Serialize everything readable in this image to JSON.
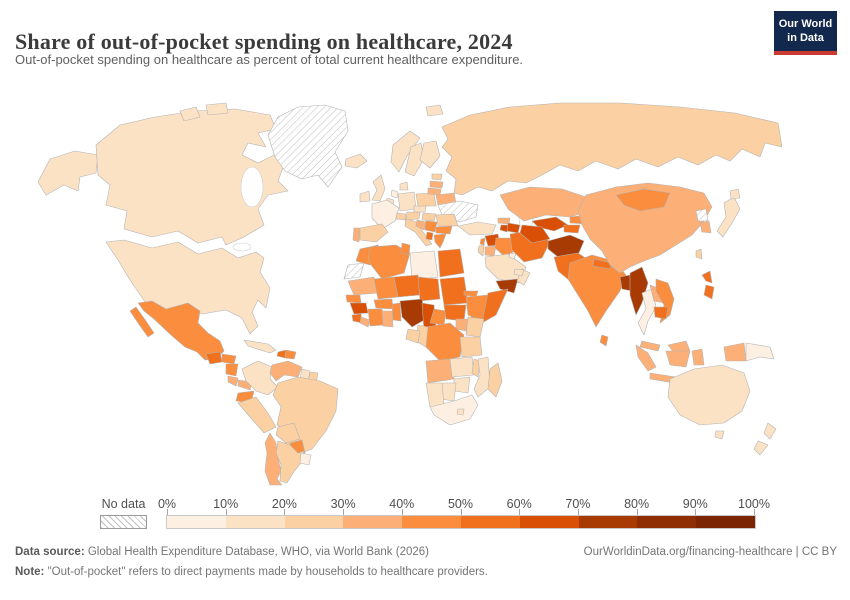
{
  "header": {
    "title": "Share of out-of-pocket spending on healthcare, 2024",
    "subtitle": "Out-of-pocket spending on healthcare as percent of total current healthcare expenditure.",
    "logo": {
      "line1": "Our World",
      "line2": "in Data",
      "bg_color": "#12294d",
      "accent_color": "#cc3b31"
    }
  },
  "legend": {
    "no_data_label": "No data",
    "tick_labels": [
      "0%",
      "10%",
      "20%",
      "30%",
      "40%",
      "50%",
      "60%",
      "70%",
      "80%",
      "90%",
      "100%"
    ]
  },
  "footer": {
    "source_label": "Data source:",
    "source_text": " Global Health Expenditure Database, WHO, via World Bank (2026)",
    "link_text": "OurWorldinData.org/financing-healthcare | CC BY",
    "note_label": "Note:",
    "note_text": " \"Out-of-pocket\" refers to direct payments made by households to healthcare providers."
  },
  "chart_data": {
    "type": "heatmap",
    "subtype": "choropleth world map",
    "title": "Share of out-of-pocket spending on healthcare, 2024",
    "unit": "percent of total current healthcare expenditure",
    "legend_position": "bottom",
    "no_data_style": "gray diagonal hatch",
    "legend_bins": [
      {
        "range": "0-10%",
        "color": "#fdf0e2"
      },
      {
        "range": "10-20%",
        "color": "#fce2c5"
      },
      {
        "range": "20-30%",
        "color": "#fbd0a2"
      },
      {
        "range": "30-40%",
        "color": "#fcb077"
      },
      {
        "range": "40-50%",
        "color": "#fa8d3e"
      },
      {
        "range": "50-60%",
        "color": "#f1701e"
      },
      {
        "range": "60-70%",
        "color": "#d94f05"
      },
      {
        "range": "70-80%",
        "color": "#a83b03"
      },
      {
        "range": "80-90%",
        "color": "#8f2d04"
      },
      {
        "range": "90-100%",
        "color": "#7b2504"
      }
    ],
    "countries": {
      "United_States": {
        "range": "10-20%",
        "color": "#fce2c5"
      },
      "Canada": {
        "range": "10-20%",
        "color": "#fce2c5"
      },
      "Greenland": {
        "range": "No data",
        "color": "hatch"
      },
      "Mexico": {
        "range": "40-50%",
        "color": "#fa8d3e"
      },
      "Guatemala": {
        "range": "50-60%",
        "color": "#f1701e"
      },
      "Honduras": {
        "range": "40-50%",
        "color": "#fa8d3e"
      },
      "Nicaragua": {
        "range": "40-50%",
        "color": "#fa8d3e"
      },
      "Costa_Rica": {
        "range": "30-40%",
        "color": "#fcb077"
      },
      "Panama": {
        "range": "30-40%",
        "color": "#fcb077"
      },
      "Cuba": {
        "range": "10-20%",
        "color": "#fce2c5"
      },
      "Haiti": {
        "range": "50-60%",
        "color": "#f1701e"
      },
      "Dominican_Republic": {
        "range": "40-50%",
        "color": "#fa8d3e"
      },
      "Colombia": {
        "range": "10-20%",
        "color": "#fce2c5"
      },
      "Venezuela": {
        "range": "30-40%",
        "color": "#fcb077"
      },
      "Guyana": {
        "range": "10-20%",
        "color": "#fce2c5"
      },
      "Suriname": {
        "range": "20-30%",
        "color": "#fbd0a2"
      },
      "Ecuador": {
        "range": "40-50%",
        "color": "#fa8d3e"
      },
      "Peru": {
        "range": "20-30%",
        "color": "#fbd0a2"
      },
      "Brazil": {
        "range": "20-30%",
        "color": "#fbd0a2"
      },
      "Bolivia": {
        "range": "20-30%",
        "color": "#fbd0a2"
      },
      "Paraguay": {
        "range": "40-50%",
        "color": "#fa8d3e"
      },
      "Chile": {
        "range": "30-40%",
        "color": "#fcb077"
      },
      "Argentina": {
        "range": "20-30%",
        "color": "#fbd0a2"
      },
      "Uruguay": {
        "range": "0-10%",
        "color": "#fdf0e2"
      },
      "Iceland": {
        "range": "10-20%",
        "color": "#fce2c5"
      },
      "Ireland": {
        "range": "10-20%",
        "color": "#fce2c5"
      },
      "United_Kingdom": {
        "range": "10-20%",
        "color": "#fce2c5"
      },
      "Norway": {
        "range": "10-20%",
        "color": "#fce2c5"
      },
      "Sweden": {
        "range": "10-20%",
        "color": "#fce2c5"
      },
      "Finland": {
        "range": "10-20%",
        "color": "#fce2c5"
      },
      "Denmark": {
        "range": "10-20%",
        "color": "#fce2c5"
      },
      "Germany": {
        "range": "10-20%",
        "color": "#fce2c5"
      },
      "Netherlands": {
        "range": "0-10%",
        "color": "#fdf0e2"
      },
      "Belgium": {
        "range": "10-20%",
        "color": "#fce2c5"
      },
      "France": {
        "range": "0-10%",
        "color": "#fdf0e2"
      },
      "Spain": {
        "range": "20-30%",
        "color": "#fbd0a2"
      },
      "Portugal": {
        "range": "30-40%",
        "color": "#fcb077"
      },
      "Italy": {
        "range": "20-30%",
        "color": "#fbd0a2"
      },
      "Switzerland": {
        "range": "20-30%",
        "color": "#fbd0a2"
      },
      "Austria": {
        "range": "20-30%",
        "color": "#fbd0a2"
      },
      "Czechia": {
        "range": "10-20%",
        "color": "#fce2c5"
      },
      "Poland": {
        "range": "20-30%",
        "color": "#fbd0a2"
      },
      "Hungary": {
        "range": "20-30%",
        "color": "#fbd0a2"
      },
      "Romania": {
        "range": "20-30%",
        "color": "#fbd0a2"
      },
      "Bulgaria": {
        "range": "40-50%",
        "color": "#fa8d3e"
      },
      "Greece": {
        "range": "40-50%",
        "color": "#fa8d3e"
      },
      "Serbia": {
        "range": "40-50%",
        "color": "#fa8d3e"
      },
      "Bosnia_and_Herzegovina": {
        "range": "30-40%",
        "color": "#fcb077"
      },
      "Albania": {
        "range": "50-60%",
        "color": "#f1701e"
      },
      "Estonia": {
        "range": "20-30%",
        "color": "#fbd0a2"
      },
      "Latvia": {
        "range": "30-40%",
        "color": "#fcb077"
      },
      "Lithuania": {
        "range": "30-40%",
        "color": "#fcb077"
      },
      "Belarus": {
        "range": "30-40%",
        "color": "#fcb077"
      },
      "Ukraine": {
        "range": "No data",
        "color": "hatch"
      },
      "Russia": {
        "range": "20-30%",
        "color": "#fbd0a2"
      },
      "Turkey": {
        "range": "10-20%",
        "color": "#fce2c5"
      },
      "Georgia": {
        "range": "30-40%",
        "color": "#fcb077"
      },
      "Armenia": {
        "range": "60-70%",
        "color": "#d94f05"
      },
      "Azerbaijan": {
        "range": "60-70%",
        "color": "#d94f05"
      },
      "Syria": {
        "range": "60-70%",
        "color": "#d94f05"
      },
      "Lebanon": {
        "range": "40-50%",
        "color": "#fa8d3e"
      },
      "Israel": {
        "range": "20-30%",
        "color": "#fbd0a2"
      },
      "Jordan": {
        "range": "30-40%",
        "color": "#fcb077"
      },
      "Iraq": {
        "range": "40-50%",
        "color": "#fa8d3e"
      },
      "Iran": {
        "range": "50-60%",
        "color": "#f1701e"
      },
      "Saudi_Arabia": {
        "range": "10-20%",
        "color": "#fce2c5"
      },
      "Yemen": {
        "range": "70-80%",
        "color": "#a83b03"
      },
      "Oman": {
        "range": "10-20%",
        "color": "#fce2c5"
      },
      "United_Arab_Emirates": {
        "range": "10-20%",
        "color": "#fce2c5"
      },
      "Kuwait": {
        "range": "0-10%",
        "color": "#fdf0e2"
      },
      "Kazakhstan": {
        "range": "30-40%",
        "color": "#fcb077"
      },
      "Uzbekistan": {
        "range": "60-70%",
        "color": "#d94f05"
      },
      "Turkmenistan": {
        "range": "60-70%",
        "color": "#d94f05"
      },
      "Kyrgyzstan": {
        "range": "40-50%",
        "color": "#fa8d3e"
      },
      "Tajikistan": {
        "range": "50-60%",
        "color": "#f1701e"
      },
      "Afghanistan": {
        "range": "70-80%",
        "color": "#a83b03"
      },
      "Pakistan": {
        "range": "50-60%",
        "color": "#f1701e"
      },
      "India": {
        "range": "40-50%",
        "color": "#fa8d3e"
      },
      "Nepal": {
        "range": "50-60%",
        "color": "#f1701e"
      },
      "Bangladesh": {
        "range": "70-80%",
        "color": "#a83b03"
      },
      "Sri_Lanka": {
        "range": "40-50%",
        "color": "#fa8d3e"
      },
      "Myanmar": {
        "range": "70-80%",
        "color": "#a83b03"
      },
      "Thailand": {
        "range": "0-10%",
        "color": "#fdf0e2"
      },
      "Laos": {
        "range": "30-40%",
        "color": "#fcb077"
      },
      "Vietnam": {
        "range": "40-50%",
        "color": "#fa8d3e"
      },
      "Cambodia": {
        "range": "50-60%",
        "color": "#f1701e"
      },
      "Malaysia": {
        "range": "30-40%",
        "color": "#fcb077"
      },
      "Indonesia": {
        "range": "30-40%",
        "color": "#fcb077"
      },
      "Philippines": {
        "range": "50-60%",
        "color": "#f1701e"
      },
      "China": {
        "range": "30-40%",
        "color": "#fcb077"
      },
      "Mongolia": {
        "range": "40-50%",
        "color": "#fa8d3e"
      },
      "North_Korea": {
        "range": "No data",
        "color": "hatch"
      },
      "South_Korea": {
        "range": "30-40%",
        "color": "#fcb077"
      },
      "Japan": {
        "range": "10-20%",
        "color": "#fce2c5"
      },
      "Taiwan": {
        "range": "20-30%",
        "color": "#fbd0a2"
      },
      "Papua_New_Guinea": {
        "range": "0-10%",
        "color": "#fdf0e2"
      },
      "Australia": {
        "range": "10-20%",
        "color": "#fce2c5"
      },
      "New_Zealand": {
        "range": "10-20%",
        "color": "#fce2c5"
      },
      "Morocco": {
        "range": "40-50%",
        "color": "#fa8d3e"
      },
      "Western_Sahara": {
        "range": "No data",
        "color": "hatch"
      },
      "Algeria": {
        "range": "40-50%",
        "color": "#fa8d3e"
      },
      "Tunisia": {
        "range": "40-50%",
        "color": "#fa8d3e"
      },
      "Libya": {
        "range": "0-10%",
        "color": "#fdf0e2"
      },
      "Egypt": {
        "range": "50-60%",
        "color": "#f1701e"
      },
      "Mauritania": {
        "range": "30-40%",
        "color": "#fcb077"
      },
      "Mali": {
        "range": "40-50%",
        "color": "#fa8d3e"
      },
      "Niger": {
        "range": "50-60%",
        "color": "#f1701e"
      },
      "Chad": {
        "range": "50-60%",
        "color": "#f1701e"
      },
      "Sudan": {
        "range": "50-60%",
        "color": "#f1701e"
      },
      "Eritrea": {
        "range": "40-50%",
        "color": "#fa8d3e"
      },
      "Senegal": {
        "range": "40-50%",
        "color": "#fa8d3e"
      },
      "Guinea": {
        "range": "60-70%",
        "color": "#d94f05"
      },
      "Sierra_Leone": {
        "range": "50-60%",
        "color": "#f1701e"
      },
      "Liberia": {
        "range": "30-40%",
        "color": "#fcb077"
      },
      "Cote_dIvoire": {
        "range": "40-50%",
        "color": "#fa8d3e"
      },
      "Ghana": {
        "range": "30-40%",
        "color": "#fcb077"
      },
      "Benin": {
        "range": "40-50%",
        "color": "#fa8d3e"
      },
      "Burkina_Faso": {
        "range": "40-50%",
        "color": "#fa8d3e"
      },
      "Nigeria": {
        "range": "70-80%",
        "color": "#a83b03"
      },
      "Cameroon": {
        "range": "60-70%",
        "color": "#d94f05"
      },
      "Central_African_Republic": {
        "range": "40-50%",
        "color": "#fa8d3e"
      },
      "South_Sudan": {
        "range": "50-60%",
        "color": "#f1701e"
      },
      "Ethiopia": {
        "range": "40-50%",
        "color": "#fa8d3e"
      },
      "Somalia": {
        "range": "50-60%",
        "color": "#f1701e"
      },
      "Kenya": {
        "range": "20-30%",
        "color": "#fbd0a2"
      },
      "Uganda": {
        "range": "30-40%",
        "color": "#fcb077"
      },
      "DR_Congo": {
        "range": "40-50%",
        "color": "#fa8d3e"
      },
      "Congo": {
        "range": "20-30%",
        "color": "#fbd0a2"
      },
      "Gabon": {
        "range": "20-30%",
        "color": "#fbd0a2"
      },
      "Tanzania": {
        "range": "20-30%",
        "color": "#fbd0a2"
      },
      "Angola": {
        "range": "30-40%",
        "color": "#fcb077"
      },
      "Zambia": {
        "range": "10-20%",
        "color": "#fce2c5"
      },
      "Malawi": {
        "range": "20-30%",
        "color": "#fbd0a2"
      },
      "Mozambique": {
        "range": "10-20%",
        "color": "#fce2c5"
      },
      "Zimbabwe": {
        "range": "10-20%",
        "color": "#fce2c5"
      },
      "Botswana": {
        "range": "10-20%",
        "color": "#fce2c5"
      },
      "Namibia": {
        "range": "10-20%",
        "color": "#fce2c5"
      },
      "South_Africa": {
        "range": "0-10%",
        "color": "#fdf0e2"
      },
      "Lesotho": {
        "range": "10-20%",
        "color": "#fce2c5"
      },
      "Madagascar": {
        "range": "20-30%",
        "color": "#fbd0a2"
      }
    }
  }
}
